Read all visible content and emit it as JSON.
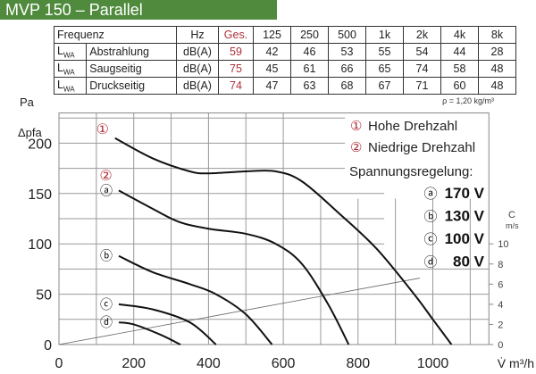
{
  "title": "MVP 150 – Parallel",
  "table": {
    "header": [
      "Frequenz",
      "Hz",
      "Ges.",
      "125",
      "250",
      "500",
      "1k",
      "2k",
      "4k",
      "8k"
    ],
    "rows": [
      {
        "lwa": "L",
        "sub": "WA",
        "name": "Abstrahlung",
        "unit": "dB(A)",
        "values": [
          "59",
          "42",
          "46",
          "53",
          "55",
          "54",
          "44",
          "28"
        ]
      },
      {
        "lwa": "L",
        "sub": "WA",
        "name": "Saugseitig",
        "unit": "dB(A)",
        "values": [
          "75",
          "45",
          "61",
          "66",
          "65",
          "74",
          "58",
          "48"
        ]
      },
      {
        "lwa": "L",
        "sub": "WA",
        "name": "Druckseitig",
        "unit": "dB(A)",
        "values": [
          "74",
          "47",
          "63",
          "68",
          "67",
          "71",
          "60",
          "48"
        ]
      }
    ]
  },
  "chart_data": {
    "type": "line",
    "ylabel": "Δpfa",
    "ylabel_unit": "Pa",
    "xlabel": "V̇ m³/h",
    "y2label": "C",
    "y2label_unit": "m/s",
    "density_note": "ρ = 1,20 kg/m³",
    "xlim": [
      0,
      1150
    ],
    "ylim": [
      0,
      230
    ],
    "xticks": [
      "0",
      "200",
      "400",
      "600",
      "800",
      "1000"
    ],
    "yticks": [
      "0",
      "50",
      "100",
      "150",
      "200"
    ],
    "y2ticks": [
      "0",
      "2",
      "4",
      "6",
      "8",
      "10"
    ],
    "grid": true,
    "legend": {
      "speed1": "Hohe Drehzahl",
      "speed1_mark": "①",
      "speed2": "Niedrige Drehzahl",
      "speed2_mark": "②",
      "heading": "Spannungsregelung:"
    },
    "series": [
      {
        "name": "1",
        "mark": "①",
        "points": [
          [
            150,
            205
          ],
          [
            250,
            185
          ],
          [
            350,
            172
          ],
          [
            400,
            170
          ],
          [
            500,
            172
          ],
          [
            580,
            172
          ],
          [
            650,
            162
          ],
          [
            750,
            130
          ],
          [
            850,
            95
          ],
          [
            950,
            50
          ],
          [
            1000,
            25
          ],
          [
            1050,
            0
          ]
        ]
      },
      {
        "name": "170 V",
        "mark": "ⓐ",
        "points": [
          [
            160,
            153
          ],
          [
            250,
            135
          ],
          [
            320,
            122
          ],
          [
            400,
            115
          ],
          [
            500,
            110
          ],
          [
            580,
            100
          ],
          [
            650,
            80
          ],
          [
            720,
            40
          ],
          [
            775,
            0
          ]
        ]
      },
      {
        "name": "130 V",
        "mark": "ⓑ",
        "points": [
          [
            160,
            88
          ],
          [
            250,
            72
          ],
          [
            350,
            60
          ],
          [
            420,
            50
          ],
          [
            500,
            30
          ],
          [
            570,
            0
          ]
        ]
      },
      {
        "name": "100 V",
        "mark": "ⓒ",
        "points": [
          [
            160,
            40
          ],
          [
            250,
            35
          ],
          [
            350,
            22
          ],
          [
            420,
            0
          ]
        ]
      },
      {
        "name": "80 V",
        "mark": "ⓓ",
        "points": [
          [
            160,
            22
          ],
          [
            200,
            20
          ],
          [
            270,
            10
          ],
          [
            325,
            0
          ]
        ]
      }
    ],
    "speed2_mark_at": "ⓐ",
    "velocity_line": [
      [
        0,
        0
      ],
      [
        965,
        66
      ]
    ]
  }
}
